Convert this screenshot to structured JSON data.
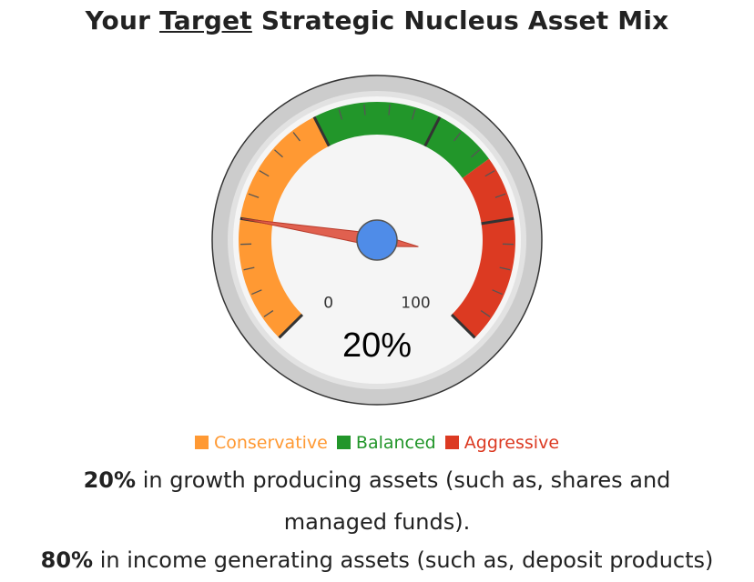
{
  "header": {
    "title_before": "Your",
    "title_emphasis": "Target",
    "title_after": "Strategic Nucleus Asset Mix"
  },
  "chart_data": {
    "type": "gauge",
    "min": 0,
    "max": 100,
    "value": 20,
    "value_label": "20%",
    "min_label": "0",
    "max_label": "100",
    "bands": [
      {
        "name": "Conservative",
        "from": 0,
        "to": 40,
        "color": "#ff9933"
      },
      {
        "name": "Balanced",
        "from": 40,
        "to": 70,
        "color": "#22962a"
      },
      {
        "name": "Aggressive",
        "from": 70,
        "to": 100,
        "color": "#dc3a22"
      }
    ],
    "major_ticks": [
      0,
      20,
      40,
      60,
      80,
      100
    ],
    "minor_ticks_per_major": 4,
    "needle_color": "#e0604f",
    "pivot_color": "#4f8ce8"
  },
  "legend": [
    {
      "label": "Conservative",
      "color": "#ff9933"
    },
    {
      "label": "Balanced",
      "color": "#22962a"
    },
    {
      "label": "Aggressive",
      "color": "#dc3a22"
    }
  ],
  "description": {
    "growth_pct": "20%",
    "growth_text": "in growth producing assets (such as, shares and",
    "growth_text_cont": "managed funds).",
    "income_pct": "80%",
    "income_text": "in income generating assets (such as, deposit products)"
  }
}
